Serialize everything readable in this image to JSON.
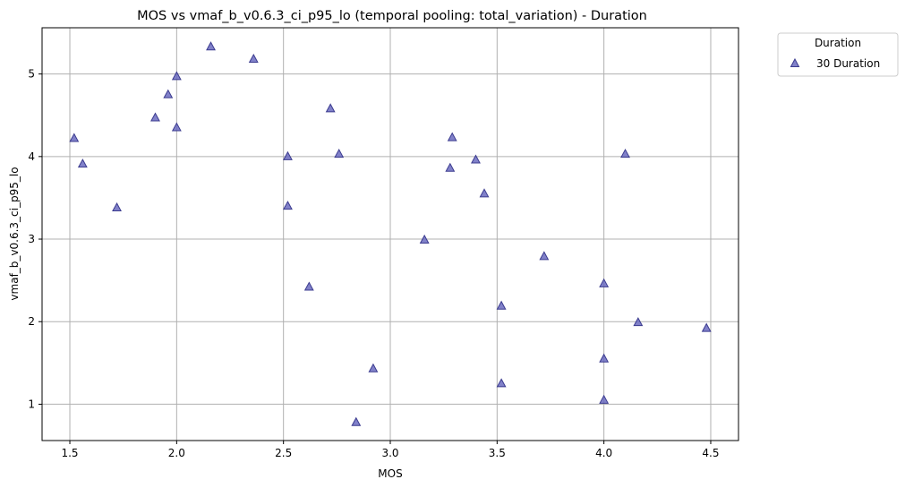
{
  "chart_data": {
    "type": "scatter",
    "title": "MOS vs vmaf_b_v0.6.3_ci_p95_lo (temporal pooling: total_variation) - Duration",
    "xlabel": "MOS",
    "ylabel": "vmaf_b_v0.6.3_ci_p95_lo",
    "xlim": [
      1.37,
      4.63
    ],
    "ylim": [
      0.56,
      5.56
    ],
    "xticks": [
      1.5,
      2.0,
      2.5,
      3.0,
      3.5,
      4.0,
      4.5
    ],
    "xtick_labels": [
      "1.5",
      "2.0",
      "2.5",
      "3.0",
      "3.5",
      "4.0",
      "4.5"
    ],
    "yticks": [
      1,
      2,
      3,
      4,
      5
    ],
    "ytick_labels": [
      "1",
      "2",
      "3",
      "4",
      "5"
    ],
    "grid": true,
    "marker": "triangle",
    "color": "#6b6bbf",
    "legend": {
      "title": "Duration",
      "placement": "outside-top-right"
    },
    "series": [
      {
        "name": "30 Duration",
        "x": [
          1.52,
          1.56,
          1.72,
          1.9,
          1.96,
          2.0,
          2.0,
          2.16,
          2.36,
          2.52,
          2.52,
          2.62,
          2.72,
          2.76,
          2.84,
          2.92,
          3.16,
          3.28,
          3.29,
          3.4,
          3.44,
          3.52,
          3.52,
          3.72,
          4.0,
          4.0,
          4.0,
          4.1,
          4.16,
          4.48
        ],
        "y": [
          4.22,
          3.91,
          3.38,
          4.47,
          4.75,
          4.97,
          4.35,
          5.33,
          5.18,
          4.0,
          3.4,
          2.42,
          4.58,
          4.03,
          0.78,
          1.43,
          2.99,
          3.86,
          4.23,
          3.96,
          3.55,
          2.19,
          1.25,
          2.79,
          2.46,
          1.55,
          1.05,
          4.03,
          1.99,
          1.92
        ]
      }
    ]
  }
}
